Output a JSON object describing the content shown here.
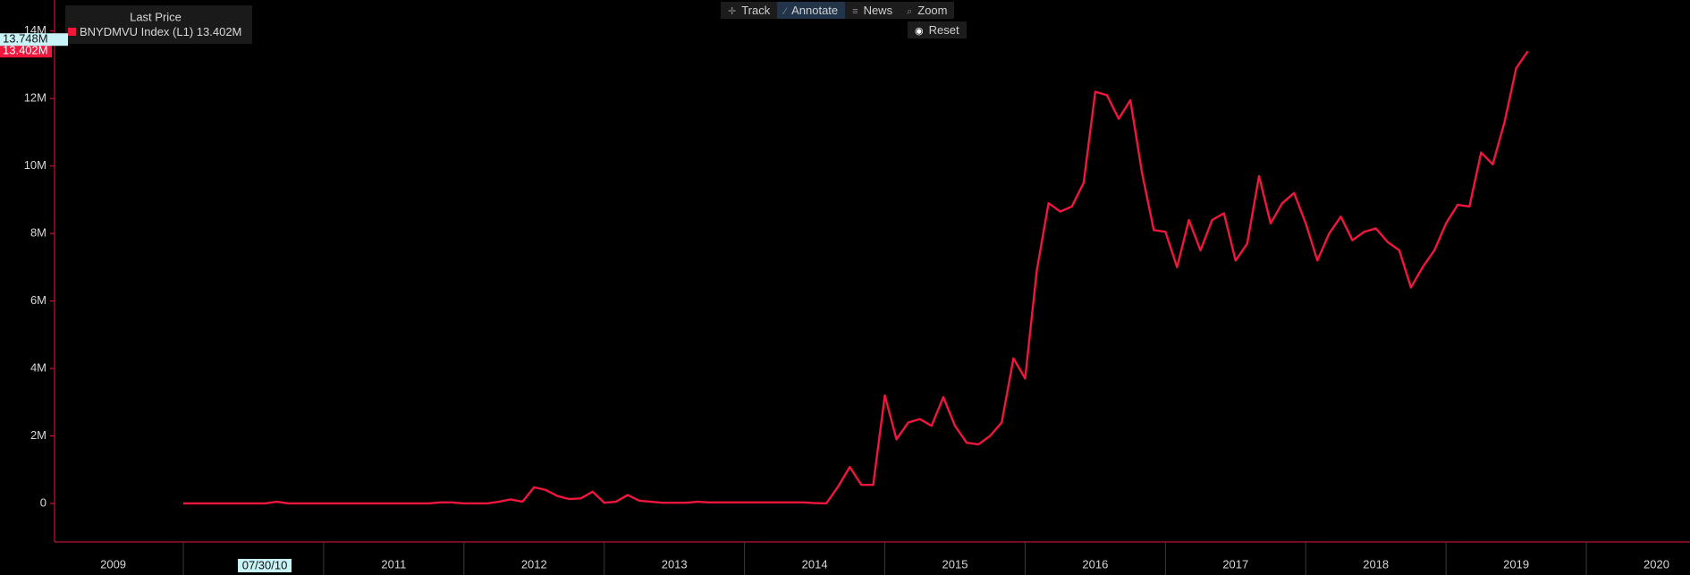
{
  "toolbar": {
    "buttons": [
      "Track",
      "Annotate",
      "News",
      "Zoom"
    ],
    "reset": "Reset"
  },
  "chart_data": {
    "type": "line",
    "legend_title": "Last Price",
    "series": [
      {
        "name": "BNYDMVU Index  (L1)",
        "color": "#f0163c",
        "last_label": "13.402M",
        "x": [
          2010,
          2010.083,
          2010.167,
          2010.25,
          2010.333,
          2010.417,
          2010.5,
          2010.583,
          2010.667,
          2010.75,
          2010.833,
          2010.917,
          2011,
          2011.083,
          2011.167,
          2011.25,
          2011.333,
          2011.417,
          2011.5,
          2011.583,
          2011.667,
          2011.75,
          2011.833,
          2011.917,
          2012,
          2012.083,
          2012.167,
          2012.25,
          2012.333,
          2012.417,
          2012.5,
          2012.583,
          2012.667,
          2012.75,
          2012.833,
          2012.917,
          2013,
          2013.083,
          2013.167,
          2013.25,
          2013.333,
          2013.417,
          2013.5,
          2013.583,
          2013.667,
          2013.75,
          2013.833,
          2013.917,
          2014,
          2014.083,
          2014.167,
          2014.25,
          2014.333,
          2014.417,
          2014.5,
          2014.583,
          2014.667,
          2014.75,
          2014.833,
          2014.917,
          2015,
          2015.083,
          2015.167,
          2015.25,
          2015.333,
          2015.417,
          2015.5,
          2015.583,
          2015.667,
          2015.75,
          2015.833,
          2015.917,
          2016,
          2016.083,
          2016.167,
          2016.25,
          2016.333,
          2016.417,
          2016.5,
          2016.583,
          2016.667,
          2016.75,
          2016.833,
          2016.917,
          2017,
          2017.083,
          2017.167,
          2017.25,
          2017.333,
          2017.417,
          2017.5,
          2017.583,
          2017.667,
          2017.75,
          2017.833,
          2017.917,
          2018,
          2018.083,
          2018.167,
          2018.25,
          2018.333,
          2018.417,
          2018.5,
          2018.583,
          2018.667,
          2018.75,
          2018.833,
          2018.917,
          2019,
          2019.083,
          2019.167,
          2019.25,
          2019.333,
          2019.417,
          2019.5,
          2019.583
        ],
        "values": [
          0,
          0,
          0,
          0,
          0,
          0,
          0,
          0,
          50000,
          0,
          0,
          0,
          0,
          0,
          0,
          0,
          0,
          0,
          0,
          0,
          0,
          0,
          30000,
          30000,
          0,
          0,
          0,
          50000,
          120000,
          50000,
          480000,
          400000,
          220000,
          130000,
          150000,
          350000,
          20000,
          50000,
          250000,
          80000,
          50000,
          20000,
          20000,
          20000,
          50000,
          30000,
          30000,
          30000,
          30000,
          30000,
          30000,
          30000,
          30000,
          30000,
          10000,
          0,
          500000,
          1080000,
          550000,
          550000,
          3200000,
          1900000,
          2400000,
          2500000,
          2300000,
          3150000,
          2300000,
          1800000,
          1750000,
          2000000,
          2400000,
          4300000,
          3700000,
          6900000,
          8900000,
          8650000,
          8800000,
          9500000,
          12200000,
          12100000,
          11400000,
          11950000,
          9800000,
          8100000,
          8050000,
          7000000,
          8400000,
          7500000,
          8400000,
          8600000,
          7200000,
          7700000,
          9700000,
          8300000,
          8900000,
          9200000,
          8300000,
          7200000,
          8000000,
          8500000,
          7800000,
          8050000,
          8150000,
          7750000,
          7500000,
          6400000,
          7000000,
          7500000,
          8300000,
          8850000,
          8800000,
          10400000,
          10050000,
          11300000,
          12900000,
          13402000
        ]
      }
    ],
    "xlim": [
      2009.082,
      2020.739
    ],
    "ylim": [
      -1140000,
      14920000
    ],
    "yticks": [
      0,
      {
        "value": 2000000,
        "label": "2M"
      },
      {
        "value": 4000000,
        "label": "4M"
      },
      {
        "value": 6000000,
        "label": "6M"
      },
      {
        "value": 8000000,
        "label": "8M"
      },
      {
        "value": 10000000,
        "label": "10M"
      },
      {
        "value": 12000000,
        "label": "12M"
      },
      {
        "value": 14000000,
        "label": "14M"
      }
    ],
    "xticks": [
      {
        "value": 2009.5,
        "label": "2009"
      },
      {
        "value": 2011.5,
        "label": "2011"
      },
      {
        "value": 2012.5,
        "label": "2012"
      },
      {
        "value": 2013.5,
        "label": "2013"
      },
      {
        "value": 2014.5,
        "label": "2014"
      },
      {
        "value": 2015.5,
        "label": "2015"
      },
      {
        "value": 2016.5,
        "label": "2016"
      },
      {
        "value": 2017.5,
        "label": "2017"
      },
      {
        "value": 2018.5,
        "label": "2018"
      },
      {
        "value": 2019.5,
        "label": "2019"
      },
      {
        "value": 2020.5,
        "label": "2020"
      }
    ],
    "x_separators": [
      2010,
      2011,
      2012,
      2013,
      2014,
      2015,
      2016,
      2017,
      2018,
      2019,
      2020
    ],
    "crosshair": {
      "x": 2010.58,
      "x_label": "07/30/10",
      "y": 13748000,
      "y_label": "13.748M"
    }
  }
}
